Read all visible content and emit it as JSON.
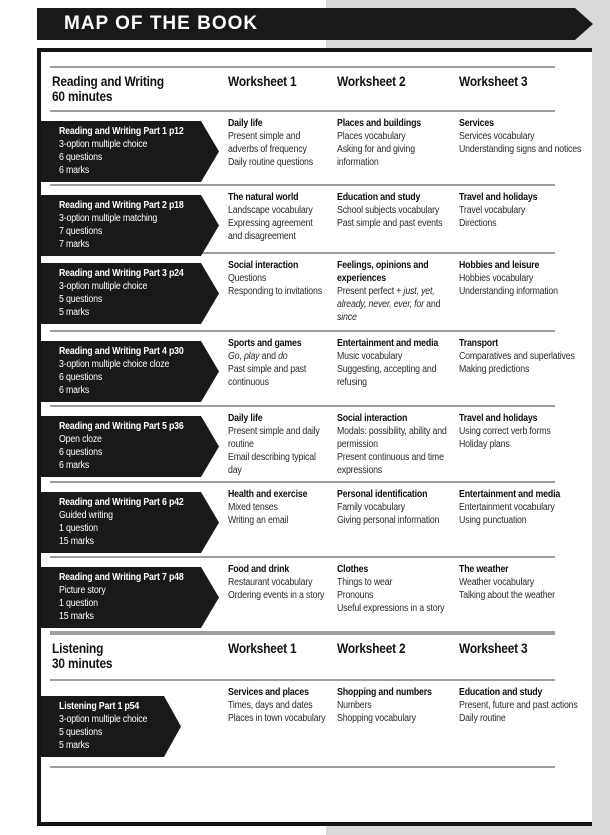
{
  "page_title": "MAP OF THE BOOK",
  "colors": {
    "banner_black": "#191919",
    "page_edge_gray": "#d9d9d9",
    "rule_gray": "#9e9e9e",
    "ribbon_fold_gray": "#4d4d4d"
  },
  "sections": [
    {
      "title_line1": "Reading and Writing",
      "title_line2": "60 minutes",
      "worksheet_headers": [
        "Worksheet 1",
        "Worksheet 2",
        "Worksheet 3"
      ],
      "rows": [
        {
          "part": {
            "title": "Reading and Writing Part 1 p12",
            "details": [
              "3-option multiple choice",
              "6 questions",
              "6 marks"
            ]
          },
          "worksheets": [
            {
              "topic": "Daily life",
              "items": [
                "Present simple and adverbs of frequency",
                "Daily routine questions"
              ]
            },
            {
              "topic": "Places and buildings",
              "items": [
                "Places vocabulary",
                "Asking for and giving information"
              ]
            },
            {
              "topic": "Services",
              "items": [
                "Services vocabulary",
                "Understanding signs and notices"
              ]
            }
          ]
        },
        {
          "part": {
            "title": "Reading and Writing Part 2 p18",
            "details": [
              "3-option multiple matching",
              "7 questions",
              "7 marks"
            ]
          },
          "worksheets": [
            {
              "topic": "The natural world",
              "items": [
                "Landscape vocabulary",
                "Expressing agreement and disagreement"
              ]
            },
            {
              "topic": "Education and study",
              "items": [
                "School subjects vocabulary",
                "Past simple and past events"
              ]
            },
            {
              "topic": "Travel and holidays",
              "items": [
                "Travel vocabulary",
                "Directions"
              ]
            }
          ]
        },
        {
          "part": {
            "title": "Reading and Writing Part 3 p24",
            "details": [
              "3-option multiple choice",
              "5 questions",
              "5 marks"
            ]
          },
          "worksheets": [
            {
              "topic": "Social interaction",
              "items": [
                "Questions",
                "Responding to invitations"
              ]
            },
            {
              "topic": "Feelings, opinions and experiences",
              "items": [
                [
                  {
                    "t": "Present perfect + "
                  },
                  {
                    "t": "just, yet, already, never, ever, for",
                    "i": true
                  },
                  {
                    "t": " and "
                  },
                  {
                    "t": "since",
                    "i": true
                  }
                ]
              ]
            },
            {
              "topic": "Hobbies and leisure",
              "items": [
                "Hobbies vocabulary",
                "Understanding information"
              ]
            }
          ]
        },
        {
          "part": {
            "title": "Reading and Writing Part 4 p30",
            "details": [
              "3-option multiple choice cloze",
              "6 questions",
              "6 marks"
            ]
          },
          "worksheets": [
            {
              "topic": "Sports and games",
              "items": [
                [
                  {
                    "t": "Go",
                    "i": true
                  },
                  {
                    "t": ", "
                  },
                  {
                    "t": "play",
                    "i": true
                  },
                  {
                    "t": " and "
                  },
                  {
                    "t": "do",
                    "i": true
                  }
                ],
                "Past simple and past continuous"
              ]
            },
            {
              "topic": "Entertainment and media",
              "items": [
                "Music vocabulary",
                "Suggesting, accepting and refusing"
              ]
            },
            {
              "topic": "Transport",
              "items": [
                "Comparatives and superlatives",
                "Making predictions"
              ]
            }
          ]
        },
        {
          "part": {
            "title": "Reading and Writing Part 5 p36",
            "details": [
              "Open cloze",
              "6 questions",
              "6 marks"
            ]
          },
          "worksheets": [
            {
              "topic": "Daily life",
              "items": [
                "Present simple and daily routine",
                "Email describing typical day"
              ]
            },
            {
              "topic": "Social interaction",
              "items": [
                "Modals: possibility, ability and permission",
                "Present continuous and time expressions"
              ]
            },
            {
              "topic": "Travel and holidays",
              "items": [
                "Using correct verb forms",
                "Holiday plans"
              ]
            }
          ]
        },
        {
          "part": {
            "title": "Reading and Writing Part 6 p42",
            "details": [
              "Guided writing",
              "1 question",
              "15 marks"
            ]
          },
          "worksheets": [
            {
              "topic": "Health and exercise",
              "items": [
                "Mixed tenses",
                "Writing an email"
              ]
            },
            {
              "topic": "Personal identification",
              "items": [
                "Family vocabulary",
                "Giving personal information"
              ]
            },
            {
              "topic": "Entertainment and media",
              "items": [
                "Entertainment vocabulary",
                "Using punctuation"
              ]
            }
          ]
        },
        {
          "part": {
            "title": "Reading and Writing Part 7 p48",
            "details": [
              "Picture story",
              "1 question",
              "15 marks"
            ]
          },
          "worksheets": [
            {
              "topic": "Food and drink",
              "items": [
                "Restaurant vocabulary",
                "Ordering events in a story"
              ]
            },
            {
              "topic": "Clothes",
              "items": [
                "Things to wear",
                "Pronouns",
                "Useful expressions in a story"
              ]
            },
            {
              "topic": "The weather",
              "items": [
                "Weather vocabulary",
                "Talking about the weather"
              ]
            }
          ]
        }
      ]
    },
    {
      "title_line1": "Listening",
      "title_line2": "30 minutes",
      "worksheet_headers": [
        "Worksheet 1",
        "Worksheet 2",
        "Worksheet 3"
      ],
      "rows": [
        {
          "part": {
            "title": "Listening Part 1 p54",
            "details": [
              "3-option multiple choice",
              "5 questions",
              "5 marks"
            ]
          },
          "worksheets": [
            {
              "topic": "Services and places",
              "items": [
                "Times, days and dates",
                "Places in town vocabulary"
              ]
            },
            {
              "topic": "Shopping and numbers",
              "items": [
                "Numbers",
                "Shopping vocabulary"
              ]
            },
            {
              "topic": "Education and study",
              "items": [
                "Present, future and past actions",
                "Daily routine"
              ]
            }
          ]
        }
      ]
    }
  ]
}
